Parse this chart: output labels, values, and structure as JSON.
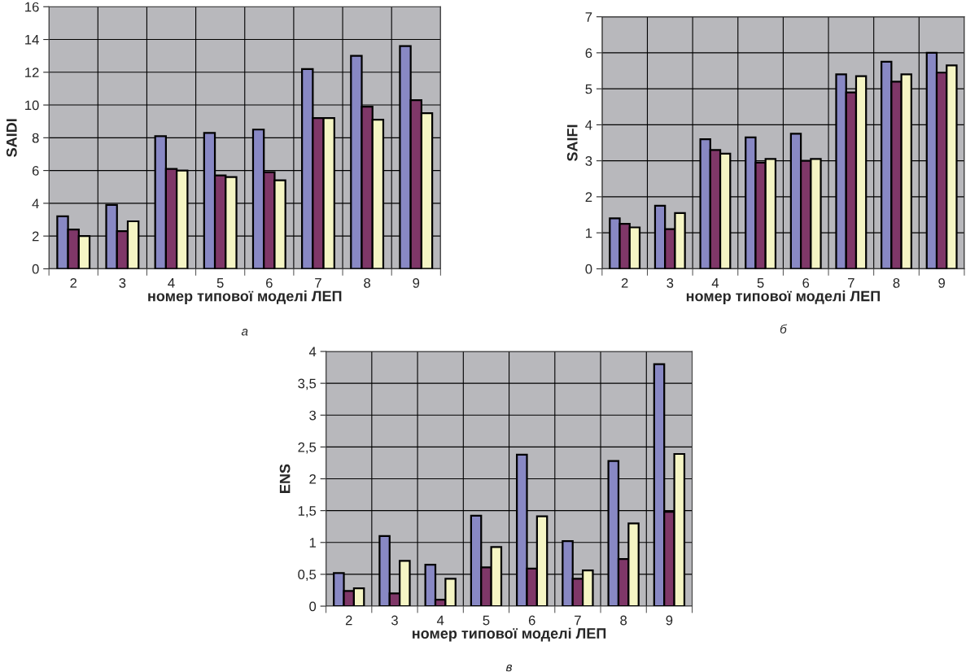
{
  "chart_data": [
    {
      "type": "bar",
      "ylabel": "SAIDI",
      "xlabel": "номер типової моделі ЛЕП",
      "annotations": [
        "а"
      ],
      "categories": [
        "2",
        "3",
        "4",
        "5",
        "6",
        "7",
        "8",
        "9"
      ],
      "series": [
        {
          "color": "#8888c4",
          "values": [
            3.2,
            3.9,
            8.1,
            8.3,
            8.5,
            12.2,
            13.0,
            13.6
          ]
        },
        {
          "color": "#7f3768",
          "values": [
            2.4,
            2.3,
            6.1,
            5.7,
            5.9,
            9.2,
            9.9,
            10.3
          ]
        },
        {
          "color": "#f5f5c4",
          "values": [
            2.0,
            2.9,
            6.0,
            5.6,
            5.4,
            9.2,
            9.1,
            9.5
          ]
        }
      ],
      "ylim": [
        0,
        16
      ],
      "yticks": [
        0,
        2,
        4,
        6,
        8,
        10,
        12,
        14,
        16
      ],
      "grid": true
    },
    {
      "type": "bar",
      "ylabel": "SAIFI",
      "xlabel": "номер типової моделі ЛЕП",
      "annotations": [
        "б"
      ],
      "categories": [
        "2",
        "3",
        "4",
        "5",
        "6",
        "7",
        "8",
        "9"
      ],
      "series": [
        {
          "color": "#8888c4",
          "values": [
            1.4,
            1.75,
            3.6,
            3.65,
            3.75,
            5.4,
            5.75,
            6.0
          ]
        },
        {
          "color": "#7f3768",
          "values": [
            1.25,
            1.1,
            3.3,
            2.95,
            3.0,
            4.9,
            5.2,
            5.45
          ]
        },
        {
          "color": "#f5f5c4",
          "values": [
            1.15,
            1.55,
            3.2,
            3.05,
            3.05,
            5.35,
            5.4,
            5.65
          ]
        }
      ],
      "ylim": [
        0,
        7
      ],
      "yticks": [
        0,
        1,
        2,
        3,
        4,
        5,
        6,
        7
      ],
      "grid": true
    },
    {
      "type": "bar",
      "ylabel": "ENS",
      "xlabel": "номер типової моделі ЛЕП",
      "annotations": [
        "в"
      ],
      "categories": [
        "2",
        "3",
        "4",
        "5",
        "6",
        "7",
        "8",
        "9"
      ],
      "series": [
        {
          "color": "#8888c4",
          "values": [
            0.52,
            1.1,
            0.65,
            1.42,
            2.38,
            1.02,
            2.28,
            3.8
          ]
        },
        {
          "color": "#7f3768",
          "values": [
            0.24,
            0.2,
            0.1,
            0.61,
            0.59,
            0.43,
            0.74,
            1.48
          ]
        },
        {
          "color": "#f5f5c4",
          "values": [
            0.28,
            0.71,
            0.43,
            0.93,
            1.41,
            0.56,
            1.3,
            2.39
          ]
        }
      ],
      "ylim": [
        0,
        4
      ],
      "yticks": [
        0,
        {
          "value": 0.5,
          "label": "0,5"
        },
        1,
        {
          "value": 1.5,
          "label": "1,5"
        },
        2,
        {
          "value": 2.5,
          "label": "2,5"
        },
        3,
        {
          "value": 3.5,
          "label": "3,5"
        },
        4
      ],
      "grid": true
    }
  ]
}
